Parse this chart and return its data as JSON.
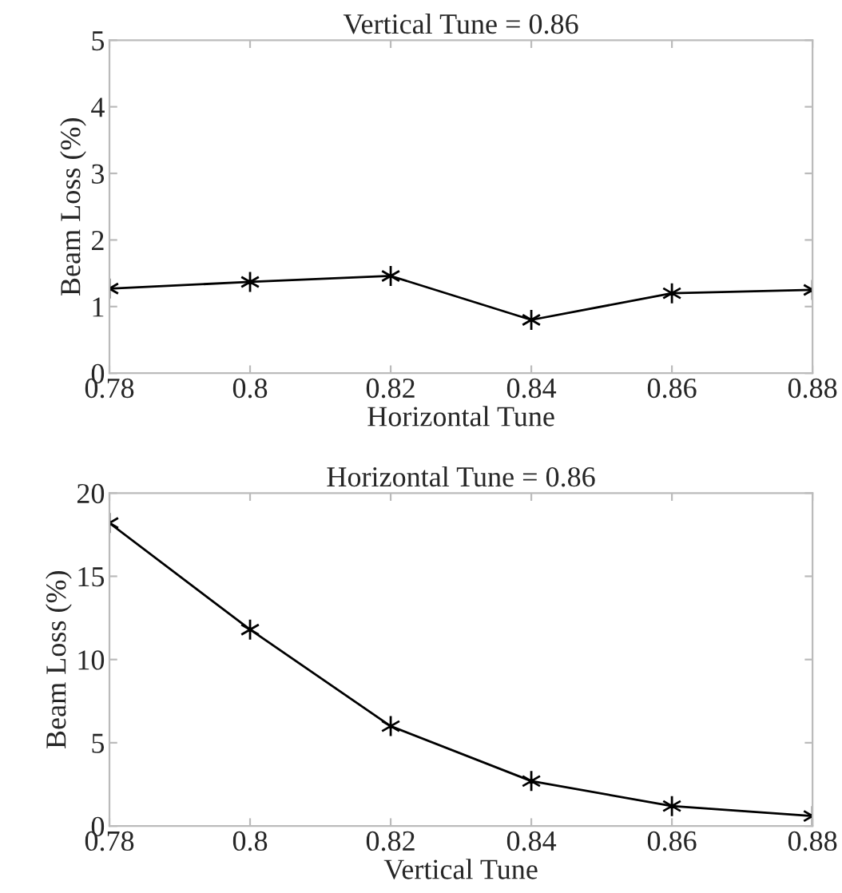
{
  "chart_data": [
    {
      "type": "line",
      "title": "Vertical Tune = 0.86",
      "xlabel": "Horizontal Tune",
      "ylabel": "Beam Loss (%)",
      "x": [
        0.78,
        0.8,
        0.82,
        0.84,
        0.86,
        0.88
      ],
      "series": [
        {
          "color": "#000000",
          "values": [
            1.27,
            1.37,
            1.46,
            0.8,
            1.2,
            1.25
          ]
        }
      ],
      "xlim": [
        0.78,
        0.88
      ],
      "xticks": [
        0.78,
        0.8,
        0.82,
        0.84,
        0.86,
        0.88
      ],
      "ylim": [
        0,
        5
      ],
      "yticks": [
        0,
        1,
        2,
        3,
        4,
        5
      ],
      "marker": "cross",
      "line_style": "solid",
      "grid": false
    },
    {
      "type": "line",
      "title": "Horizontal Tune = 0.86",
      "xlabel": "Vertical Tune",
      "ylabel": "Beam Loss (%)",
      "x": [
        0.78,
        0.8,
        0.82,
        0.84,
        0.86,
        0.88
      ],
      "series": [
        {
          "color": "#000000",
          "values": [
            18.2,
            11.8,
            6.0,
            2.7,
            1.2,
            0.6
          ]
        }
      ],
      "xlim": [
        0.78,
        0.88
      ],
      "xticks": [
        0.78,
        0.8,
        0.82,
        0.84,
        0.86,
        0.88
      ],
      "ylim": [
        0,
        20
      ],
      "yticks": [
        0,
        5,
        10,
        15,
        20
      ],
      "marker": "cross",
      "line_style": "solid",
      "grid": false
    }
  ]
}
